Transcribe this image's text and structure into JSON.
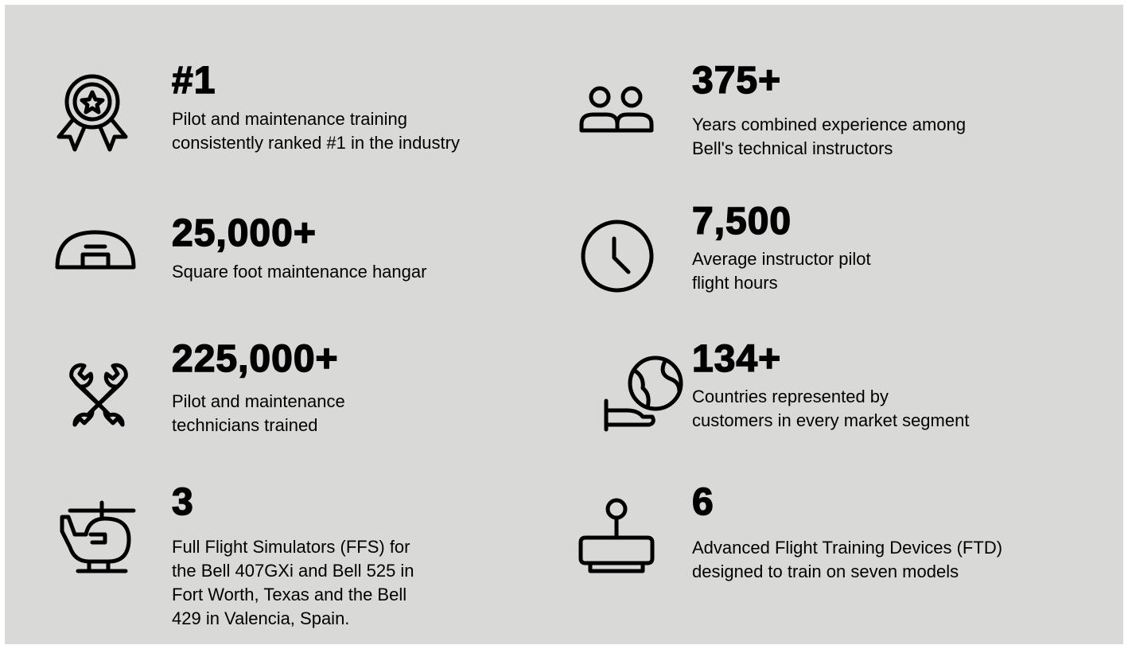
{
  "items": [
    {
      "stat": "#1",
      "lines": [
        "Pilot and maintenance training",
        "consistently ranked #1 in the industry"
      ]
    },
    {
      "stat": "375+",
      "lines": [
        "Years combined experience among",
        "Bell's technical instructors"
      ]
    },
    {
      "stat": "25,000+",
      "lines": [
        "Square foot maintenance hangar"
      ]
    },
    {
      "stat": "7,500",
      "lines": [
        "Average instructor pilot",
        "flight hours"
      ]
    },
    {
      "stat": "225,000+",
      "lines": [
        "Pilot and maintenance",
        "technicians trained"
      ]
    },
    {
      "stat": "134+",
      "lines": [
        "Countries represented by",
        "customers in every market segment"
      ]
    },
    {
      "stat": "3",
      "lines": [
        "Full Flight Simulators (FFS) for",
        "the Bell 407GXi and Bell 525 in",
        "Fort Worth, Texas and the Bell",
        "429 in Valencia, Spain."
      ]
    },
    {
      "stat": "6",
      "lines": [
        "Advanced Flight Training Devices (FTD)",
        "designed to train on seven models"
      ]
    }
  ]
}
